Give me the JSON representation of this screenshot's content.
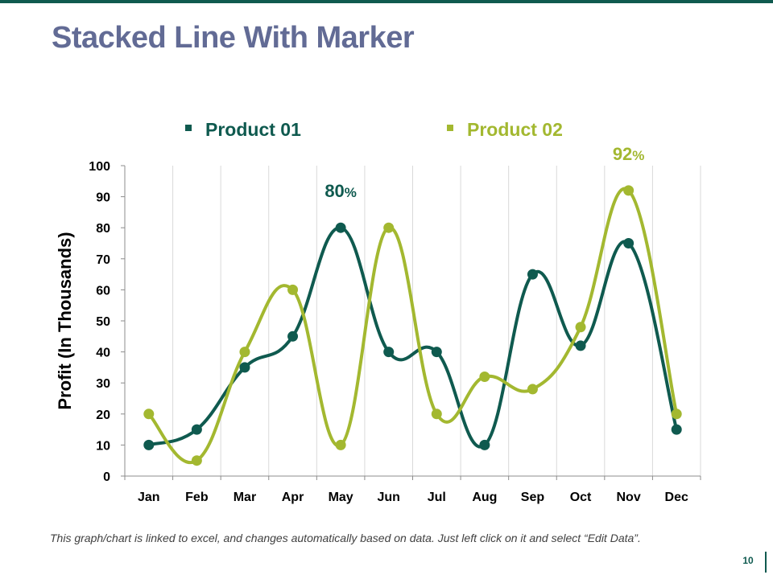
{
  "slide": {
    "title": "Stacked Line With Marker",
    "footnote": "This graph/chart is linked to excel, and changes automatically based on data. Just left click on it and select “Edit Data”.",
    "page_number": "10",
    "colors": {
      "title": "#626b95",
      "accent": "#0f5a4f",
      "footnote": "#404040"
    }
  },
  "chart_data": {
    "type": "line",
    "title": "",
    "xlabel": "",
    "ylabel": "Profit (In Thousands)",
    "categories": [
      "Jan",
      "Feb",
      "Mar",
      "Apr",
      "May",
      "Jun",
      "Jul",
      "Aug",
      "Sep",
      "Oct",
      "Nov",
      "Dec"
    ],
    "ylim": [
      0,
      100
    ],
    "yticks": [
      0,
      10,
      20,
      30,
      40,
      50,
      60,
      70,
      80,
      90,
      100
    ],
    "smooth": true,
    "markers": true,
    "grid": "vertical",
    "legend": "top",
    "series": [
      {
        "name": "Product 01",
        "color": "#0f5a4f",
        "values": [
          10,
          15,
          35,
          45,
          80,
          40,
          40,
          10,
          65,
          42,
          75,
          15
        ]
      },
      {
        "name": "Product 02",
        "color": "#a3b830",
        "values": [
          20,
          5,
          40,
          60,
          10,
          80,
          20,
          32,
          28,
          48,
          92,
          20
        ]
      }
    ],
    "annotations": [
      {
        "series": 0,
        "category": "May",
        "value": "80",
        "unit": "%"
      },
      {
        "series": 1,
        "category": "Nov",
        "value": "92",
        "unit": "%"
      }
    ]
  }
}
